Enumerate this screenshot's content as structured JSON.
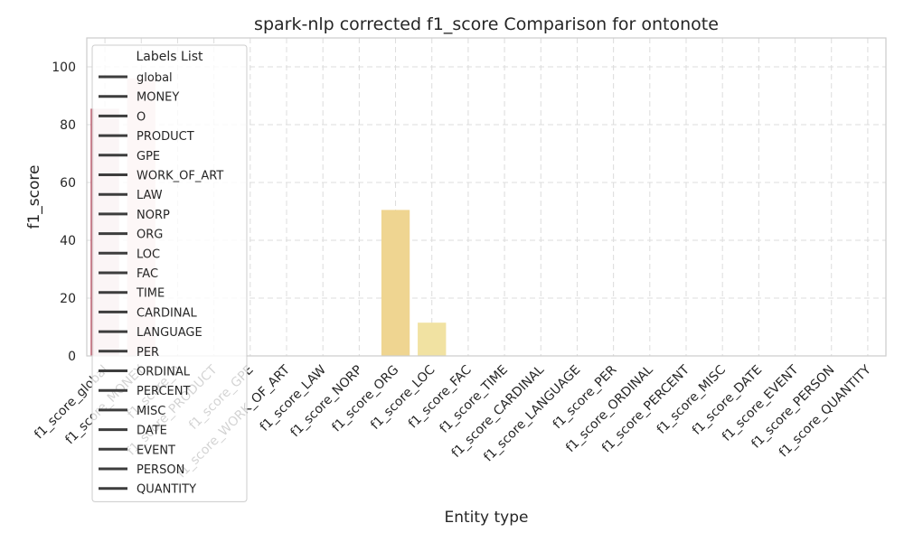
{
  "chart_data": {
    "type": "bar",
    "title": "spark-nlp corrected f1_score Comparison for ontonote",
    "xlabel": "Entity type",
    "ylabel": "f1_score",
    "ylim": [
      0,
      110
    ],
    "yticks": [
      0,
      20,
      40,
      60,
      80,
      100
    ],
    "grid": true,
    "categories": [
      "f1_score_global",
      "f1_score_MONEY",
      "f1_score_O",
      "f1_score_PRODUCT",
      "f1_score_GPE",
      "f1_score_WORK_OF_ART",
      "f1_score_LAW",
      "f1_score_NORP",
      "f1_score_ORG",
      "f1_score_LOC",
      "f1_score_FAC",
      "f1_score_TIME",
      "f1_score_CARDINAL",
      "f1_score_LANGUAGE",
      "f1_score_PER",
      "f1_score_ORDINAL",
      "f1_score_PERCENT",
      "f1_score_MISC",
      "f1_score_DATE",
      "f1_score_EVENT",
      "f1_score_PERSON",
      "f1_score_QUANTITY"
    ],
    "values": [
      85.5,
      96.0,
      0,
      0,
      0,
      0,
      0,
      0,
      50.5,
      11.5,
      0,
      0,
      0,
      0,
      0,
      0,
      0,
      0,
      0,
      0,
      0,
      0
    ],
    "bar_colors": [
      "#e8cdd3",
      "#f5d7d4",
      "#f4dcd0",
      "#f4dfcc",
      "#f3e1c8",
      "#f3e3c2",
      "#f2e4bc",
      "#f1e0ae",
      "#efd591",
      "#f1e2a2",
      "#f0e0a0",
      "#f0e0a0",
      "#f0e0a0",
      "#f0e0a0",
      "#f0e0a0",
      "#f0e0a0",
      "#f0e0a0",
      "#f0e0a0",
      "#f0e0a0",
      "#f0e0a0",
      "#f0e0a0",
      "#f0e0a0"
    ],
    "highlight_line": {
      "category": "f1_score_global",
      "color": "#b5334a"
    },
    "legend": {
      "title": "Labels List",
      "placement": "top-left",
      "entries": [
        "global",
        "MONEY",
        "O",
        "PRODUCT",
        "GPE",
        "WORK_OF_ART",
        "LAW",
        "NORP",
        "ORG",
        "LOC",
        "FAC",
        "TIME",
        "CARDINAL",
        "LANGUAGE",
        "PER",
        "ORDINAL",
        "PERCENT",
        "MISC",
        "DATE",
        "EVENT",
        "PERSON",
        "QUANTITY"
      ]
    }
  }
}
